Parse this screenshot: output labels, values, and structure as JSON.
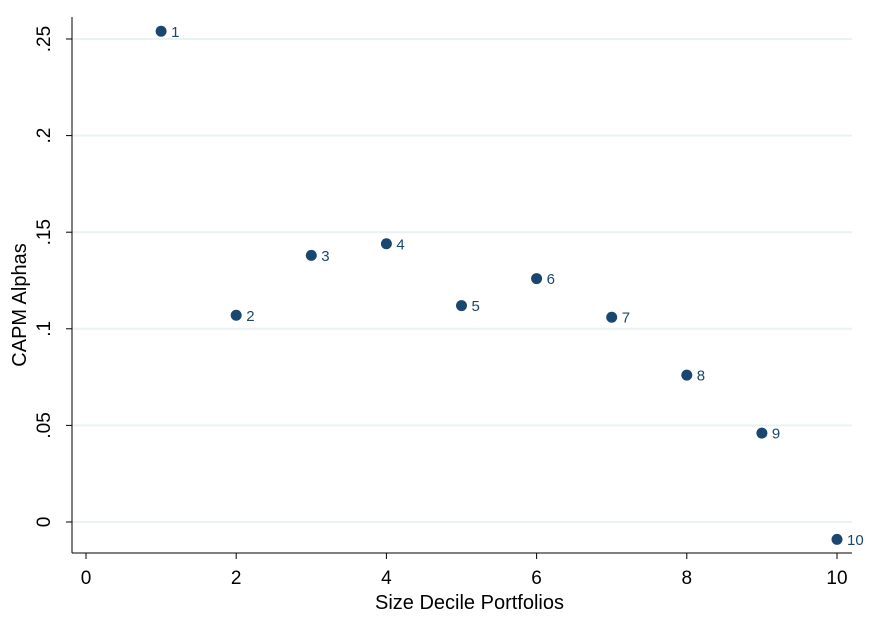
{
  "chart_data": {
    "type": "scatter",
    "xlabel": "Size Decile Portfolios",
    "ylabel": "CAPM Alphas",
    "xlim": [
      0,
      10
    ],
    "ylim": [
      0,
      0.25
    ],
    "x_ticks": [
      0,
      2,
      4,
      6,
      8,
      10
    ],
    "x_tick_labels": [
      "0",
      "2",
      "4",
      "6",
      "8",
      "10"
    ],
    "y_ticks": [
      0,
      0.05,
      0.1,
      0.15,
      0.2,
      0.25
    ],
    "y_tick_labels": [
      "0",
      ".05",
      ".1",
      ".15",
      ".2",
      ".25"
    ],
    "grid": "horizontal",
    "legend": "none",
    "marker_color": "#1a476f",
    "grid_color": "#eaf2f3",
    "points": [
      {
        "x": 1,
        "y": 0.254,
        "label": "1"
      },
      {
        "x": 2,
        "y": 0.107,
        "label": "2"
      },
      {
        "x": 3,
        "y": 0.138,
        "label": "3"
      },
      {
        "x": 4,
        "y": 0.144,
        "label": "4"
      },
      {
        "x": 5,
        "y": 0.112,
        "label": "5"
      },
      {
        "x": 6,
        "y": 0.126,
        "label": "6"
      },
      {
        "x": 7,
        "y": 0.106,
        "label": "7"
      },
      {
        "x": 8,
        "y": 0.076,
        "label": "8"
      },
      {
        "x": 9,
        "y": 0.046,
        "label": "9"
      },
      {
        "x": 10,
        "y": -0.009,
        "label": "10"
      }
    ]
  }
}
